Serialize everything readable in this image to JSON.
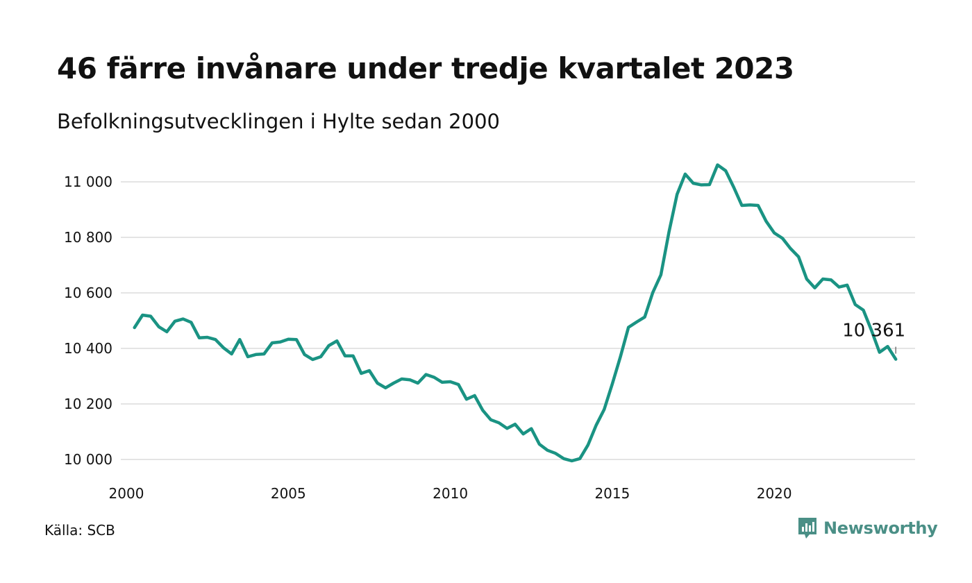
{
  "title": "46 färre invånare under tredje kvartalet 2023",
  "subtitle": "Befolkningsutvecklingen i Hylte sedan 2000",
  "source": "Källa: SCB",
  "brand": {
    "name": "Newsworthy",
    "icon": "newsworthy-logo-icon",
    "color": "#4a8f86"
  },
  "chart_data": {
    "type": "line",
    "title": "46 färre invånare under tredje kvartalet 2023",
    "subtitle": "Befolkningsutvecklingen i Hylte sedan 2000",
    "xlabel": "",
    "ylabel": "",
    "xlim": [
      2000,
      2024.2
    ],
    "ylim": [
      9975,
      11100
    ],
    "x_ticks": [
      2000,
      2005,
      2010,
      2015,
      2020
    ],
    "x_tick_labels": [
      "2000",
      "2005",
      "2010",
      "2015",
      "2020"
    ],
    "y_ticks": [
      10000,
      10200,
      10400,
      10600,
      10800,
      11000
    ],
    "y_tick_labels": [
      "10 000",
      "10 200",
      "10 400",
      "10 600",
      "10 800",
      "11 000"
    ],
    "grid": "horizontal",
    "line_color": "#1a9383",
    "end_label": "10 361",
    "series": [
      {
        "values": [
          [
            2000.25,
            10475
          ],
          [
            2000.5,
            10520
          ],
          [
            2000.75,
            10516
          ],
          [
            2001.0,
            10478
          ],
          [
            2001.25,
            10460
          ],
          [
            2001.5,
            10498
          ],
          [
            2001.75,
            10506
          ],
          [
            2002.0,
            10494
          ],
          [
            2002.25,
            10438
          ],
          [
            2002.5,
            10440
          ],
          [
            2002.75,
            10432
          ],
          [
            2003.0,
            10402
          ],
          [
            2003.25,
            10380
          ],
          [
            2003.5,
            10432
          ],
          [
            2003.75,
            10370
          ],
          [
            2004.0,
            10378
          ],
          [
            2004.25,
            10380
          ],
          [
            2004.5,
            10420
          ],
          [
            2004.75,
            10423
          ],
          [
            2005.0,
            10433
          ],
          [
            2005.25,
            10432
          ],
          [
            2005.5,
            10378
          ],
          [
            2005.75,
            10360
          ],
          [
            2006.0,
            10370
          ],
          [
            2006.25,
            10410
          ],
          [
            2006.5,
            10427
          ],
          [
            2006.75,
            10373
          ],
          [
            2007.0,
            10373
          ],
          [
            2007.25,
            10310
          ],
          [
            2007.5,
            10320
          ],
          [
            2007.75,
            10275
          ],
          [
            2008.0,
            10258
          ],
          [
            2008.25,
            10275
          ],
          [
            2008.5,
            10290
          ],
          [
            2008.75,
            10287
          ],
          [
            2009.0,
            10275
          ],
          [
            2009.25,
            10306
          ],
          [
            2009.5,
            10296
          ],
          [
            2009.75,
            10278
          ],
          [
            2010.0,
            10280
          ],
          [
            2010.25,
            10270
          ],
          [
            2010.5,
            10217
          ],
          [
            2010.75,
            10230
          ],
          [
            2011.0,
            10177
          ],
          [
            2011.25,
            10143
          ],
          [
            2011.5,
            10132
          ],
          [
            2011.75,
            10112
          ],
          [
            2012.0,
            10127
          ],
          [
            2012.25,
            10092
          ],
          [
            2012.5,
            10111
          ],
          [
            2012.75,
            10055
          ],
          [
            2013.0,
            10033
          ],
          [
            2013.25,
            10022
          ],
          [
            2013.5,
            10003
          ],
          [
            2013.75,
            9995
          ],
          [
            2014.0,
            10003
          ],
          [
            2014.25,
            10052
          ],
          [
            2014.5,
            10123
          ],
          [
            2014.75,
            10180
          ],
          [
            2015.0,
            10272
          ],
          [
            2015.25,
            10370
          ],
          [
            2015.5,
            10476
          ],
          [
            2015.75,
            10495
          ],
          [
            2016.0,
            10513
          ],
          [
            2016.25,
            10601
          ],
          [
            2016.5,
            10665
          ],
          [
            2016.75,
            10820
          ],
          [
            2017.0,
            10955
          ],
          [
            2017.25,
            11028
          ],
          [
            2017.5,
            10995
          ],
          [
            2017.75,
            10989
          ],
          [
            2018.0,
            10990
          ],
          [
            2018.25,
            11061
          ],
          [
            2018.5,
            11040
          ],
          [
            2018.75,
            10980
          ],
          [
            2019.0,
            10915
          ],
          [
            2019.25,
            10917
          ],
          [
            2019.5,
            10915
          ],
          [
            2019.75,
            10858
          ],
          [
            2020.0,
            10816
          ],
          [
            2020.25,
            10797
          ],
          [
            2020.5,
            10760
          ],
          [
            2020.75,
            10730
          ],
          [
            2021.0,
            10650
          ],
          [
            2021.25,
            10618
          ],
          [
            2021.5,
            10650
          ],
          [
            2021.75,
            10647
          ],
          [
            2022.0,
            10621
          ],
          [
            2022.25,
            10628
          ],
          [
            2022.5,
            10558
          ],
          [
            2022.75,
            10538
          ],
          [
            2023.0,
            10465
          ],
          [
            2023.25,
            10386
          ],
          [
            2023.5,
            10407
          ],
          [
            2023.75,
            10361
          ]
        ]
      }
    ]
  }
}
